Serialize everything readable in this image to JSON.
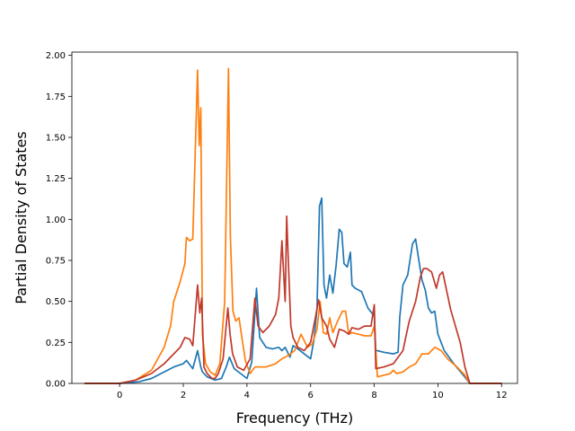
{
  "chart_data": {
    "type": "line",
    "title": "",
    "xlabel": "Frequency (THz)",
    "ylabel": "Partial Density of States",
    "xlim": [
      -1.5,
      12.5
    ],
    "ylim": [
      0,
      2.02
    ],
    "xticks": [
      0,
      2,
      4,
      6,
      8,
      10,
      12
    ],
    "yticks": [
      0.0,
      0.25,
      0.5,
      0.75,
      1.0,
      1.25,
      1.5,
      1.75,
      2.0
    ],
    "xtick_labels": [
      "0",
      "2",
      "4",
      "6",
      "8",
      "10",
      "12"
    ],
    "ytick_labels": [
      "0.00",
      "0.25",
      "0.50",
      "0.75",
      "1.00",
      "1.25",
      "1.50",
      "1.75",
      "2.00"
    ],
    "grid": false,
    "legend": "none",
    "series": [
      {
        "color": "#1f77b4",
        "x": [
          -1.1,
          0,
          0.6,
          1.0,
          1.4,
          1.7,
          2.0,
          2.1,
          2.3,
          2.45,
          2.55,
          2.6,
          2.75,
          3.0,
          3.2,
          3.35,
          3.45,
          3.6,
          3.8,
          4.0,
          4.15,
          4.3,
          4.4,
          4.6,
          4.8,
          5.0,
          5.1,
          5.2,
          5.35,
          5.45,
          5.6,
          5.8,
          6.0,
          6.1,
          6.2,
          6.28,
          6.35,
          6.42,
          6.5,
          6.6,
          6.7,
          6.8,
          6.9,
          6.98,
          7.05,
          7.15,
          7.25,
          7.3,
          7.4,
          7.6,
          7.8,
          8.0,
          8.05,
          8.1,
          8.3,
          8.6,
          8.75,
          8.8,
          8.9,
          9.05,
          9.2,
          9.3,
          9.4,
          9.5,
          9.6,
          9.7,
          9.8,
          9.9,
          10.0,
          10.2,
          10.5,
          10.8,
          11.0,
          12.0
        ],
        "values": [
          0,
          0,
          0.01,
          0.03,
          0.07,
          0.1,
          0.12,
          0.14,
          0.09,
          0.2,
          0.1,
          0.07,
          0.04,
          0.02,
          0.03,
          0.1,
          0.16,
          0.09,
          0.06,
          0.03,
          0.13,
          0.58,
          0.28,
          0.22,
          0.21,
          0.22,
          0.2,
          0.22,
          0.16,
          0.23,
          0.21,
          0.18,
          0.15,
          0.26,
          0.45,
          1.08,
          1.13,
          0.6,
          0.52,
          0.66,
          0.55,
          0.72,
          0.94,
          0.92,
          0.73,
          0.71,
          0.8,
          0.6,
          0.58,
          0.56,
          0.46,
          0.41,
          0.2,
          0.2,
          0.19,
          0.18,
          0.19,
          0.4,
          0.6,
          0.66,
          0.85,
          0.88,
          0.75,
          0.63,
          0.57,
          0.46,
          0.43,
          0.44,
          0.3,
          0.2,
          0.12,
          0.05,
          0,
          0
        ]
      },
      {
        "color": "#ff7f0e",
        "x": [
          -1.1,
          0,
          0.5,
          1.0,
          1.4,
          1.6,
          1.7,
          1.9,
          2.05,
          2.1,
          2.2,
          2.3,
          2.45,
          2.5,
          2.55,
          2.6,
          2.7,
          2.85,
          3.0,
          3.15,
          3.3,
          3.42,
          3.48,
          3.56,
          3.65,
          3.75,
          3.85,
          3.95,
          4.1,
          4.25,
          4.4,
          4.6,
          4.9,
          5.1,
          5.3,
          5.5,
          5.7,
          5.9,
          6.05,
          6.2,
          6.3,
          6.4,
          6.5,
          6.6,
          6.7,
          6.85,
          7.0,
          7.1,
          7.2,
          7.3,
          7.5,
          7.7,
          7.9,
          8.0,
          8.1,
          8.3,
          8.5,
          8.6,
          8.7,
          8.9,
          9.1,
          9.3,
          9.5,
          9.7,
          9.9,
          10.1,
          10.3,
          10.6,
          10.85,
          11.0,
          12.0
        ],
        "values": [
          0,
          0,
          0.02,
          0.08,
          0.22,
          0.35,
          0.5,
          0.62,
          0.73,
          0.89,
          0.87,
          0.88,
          1.91,
          1.45,
          1.68,
          0.3,
          0.12,
          0.07,
          0.05,
          0.12,
          0.5,
          1.92,
          0.9,
          0.44,
          0.38,
          0.4,
          0.27,
          0.14,
          0.06,
          0.1,
          0.1,
          0.1,
          0.12,
          0.15,
          0.17,
          0.2,
          0.3,
          0.22,
          0.24,
          0.33,
          0.5,
          0.31,
          0.3,
          0.4,
          0.31,
          0.38,
          0.44,
          0.44,
          0.3,
          0.31,
          0.3,
          0.29,
          0.29,
          0.35,
          0.04,
          0.05,
          0.06,
          0.08,
          0.06,
          0.07,
          0.1,
          0.12,
          0.18,
          0.18,
          0.22,
          0.2,
          0.15,
          0.1,
          0.05,
          0,
          0
        ]
      },
      {
        "color": "#c0392b",
        "x": [
          -1.1,
          0,
          0.5,
          1.0,
          1.4,
          1.7,
          1.9,
          2.05,
          2.2,
          2.3,
          2.45,
          2.52,
          2.58,
          2.65,
          2.75,
          2.9,
          3.0,
          3.1,
          3.25,
          3.4,
          3.47,
          3.55,
          3.7,
          3.9,
          4.1,
          4.25,
          4.35,
          4.5,
          4.7,
          4.9,
          5.0,
          5.1,
          5.2,
          5.25,
          5.3,
          5.38,
          5.45,
          5.6,
          5.8,
          6.0,
          6.15,
          6.25,
          6.35,
          6.5,
          6.6,
          6.75,
          6.9,
          7.05,
          7.2,
          7.3,
          7.5,
          7.7,
          7.9,
          8.0,
          8.05,
          8.3,
          8.6,
          8.9,
          9.1,
          9.3,
          9.45,
          9.55,
          9.65,
          9.8,
          9.95,
          10.05,
          10.15,
          10.4,
          10.7,
          10.85,
          11.0,
          12.0
        ],
        "values": [
          0,
          0,
          0.02,
          0.06,
          0.12,
          0.18,
          0.22,
          0.28,
          0.27,
          0.23,
          0.6,
          0.43,
          0.52,
          0.1,
          0.06,
          0.03,
          0.03,
          0.06,
          0.15,
          0.46,
          0.3,
          0.18,
          0.1,
          0.08,
          0.15,
          0.52,
          0.35,
          0.31,
          0.35,
          0.42,
          0.52,
          0.87,
          0.5,
          1.02,
          0.75,
          0.35,
          0.28,
          0.22,
          0.2,
          0.25,
          0.4,
          0.51,
          0.4,
          0.35,
          0.27,
          0.22,
          0.33,
          0.32,
          0.3,
          0.34,
          0.33,
          0.35,
          0.35,
          0.48,
          0.09,
          0.1,
          0.12,
          0.2,
          0.38,
          0.5,
          0.65,
          0.7,
          0.7,
          0.68,
          0.58,
          0.66,
          0.68,
          0.45,
          0.25,
          0.1,
          0,
          0
        ]
      }
    ]
  }
}
